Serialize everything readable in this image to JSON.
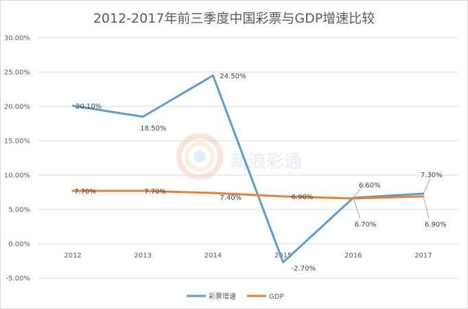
{
  "chart_data": {
    "type": "line",
    "title": "2012-2017年前三季度中国彩票与GDP增速比较",
    "xlabel": "",
    "ylabel": "",
    "categories": [
      "2012",
      "2013",
      "2014",
      "2015",
      "2016",
      "2017"
    ],
    "ylim": [
      -0.05,
      0.3
    ],
    "yticks": [
      -0.05,
      0.0,
      0.05,
      0.1,
      0.15,
      0.2,
      0.25,
      0.3
    ],
    "ytick_labels": [
      "-5.00%",
      "0.00%",
      "5.00%",
      "10.00%",
      "15.00%",
      "20.00%",
      "25.00%",
      "30.00%"
    ],
    "grid": true,
    "legend_position": "bottom",
    "series": [
      {
        "name": "彩票增速",
        "color": "#5b9bd5",
        "values": [
          0.201,
          0.185,
          0.245,
          -0.027,
          0.067,
          0.073
        ],
        "labels": [
          "20.10%",
          "18.50%",
          "24.50%",
          "-2.70%",
          "6.70%",
          "7.30%"
        ]
      },
      {
        "name": "GDP",
        "color": "#ed7d31",
        "values": [
          0.077,
          0.077,
          0.074,
          0.069,
          0.066,
          0.069
        ],
        "labels": [
          "7.70%",
          "7.70%",
          "7.40%",
          "6.90%",
          "6.60%",
          "6.90%"
        ]
      }
    ],
    "watermark": "新浪彩通"
  }
}
